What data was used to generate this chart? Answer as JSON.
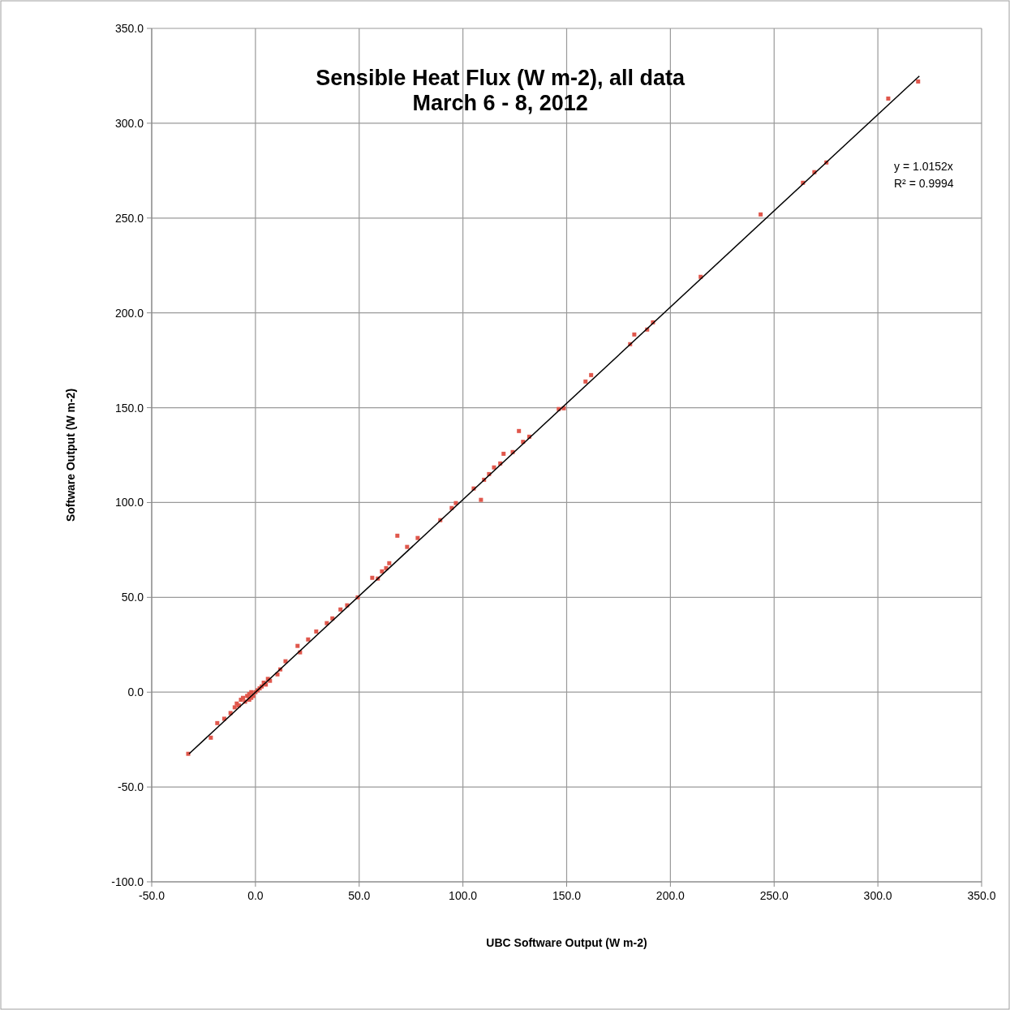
{
  "chart_data": {
    "type": "scatter",
    "title": "Sensible Heat Flux (W m-2),  all data",
    "subtitle": "March 6 - 8, 2012",
    "xlabel": "UBC Software Output (W m-2)",
    "ylabel": "Software Output (W m-2)",
    "xlim": [
      -50,
      350
    ],
    "ylim": [
      -100,
      350
    ],
    "xticks": [
      {
        "value": -50,
        "label": "-50.0"
      },
      {
        "value": 0,
        "label": "0.0"
      },
      {
        "value": 50,
        "label": "50.0"
      },
      {
        "value": 100,
        "label": "100.0"
      },
      {
        "value": 150,
        "label": "150.0"
      },
      {
        "value": 200,
        "label": "200.0"
      },
      {
        "value": 250,
        "label": "250.0"
      },
      {
        "value": 300,
        "label": "300.0"
      },
      {
        "value": 350,
        "label": "350.0"
      }
    ],
    "yticks": [
      {
        "value": -100,
        "label": "-100.0"
      },
      {
        "value": -50,
        "label": "-50.0"
      },
      {
        "value": 0,
        "label": "0.0"
      },
      {
        "value": 50,
        "label": "50.0"
      },
      {
        "value": 100,
        "label": "100.0"
      },
      {
        "value": 150,
        "label": "150.0"
      },
      {
        "value": 200,
        "label": "200.0"
      },
      {
        "value": 250,
        "label": "250.0"
      },
      {
        "value": 300,
        "label": "300.0"
      },
      {
        "value": 350,
        "label": "350.0"
      }
    ],
    "grid": true,
    "marker": "square",
    "annotations": [
      "y = 1.0152x",
      "R² = 0.9994"
    ],
    "series": [
      {
        "color": "#e0574c",
        "x": [
          -32.4,
          -21.5,
          -18.4,
          -15,
          -12,
          -10,
          -9,
          -8,
          -7,
          -6,
          -5,
          -4,
          -3,
          -2,
          -1,
          0,
          1,
          2,
          3,
          4,
          5,
          6,
          7,
          -3,
          -2,
          14.5,
          10.6,
          12,
          20.3,
          21.5,
          25.4,
          29.3,
          34.4,
          37.1,
          41,
          44.2,
          49.3,
          56.3,
          59,
          61,
          63,
          64.5,
          68.4,
          73.1,
          78.2,
          89.1,
          94.6,
          96.6,
          105.2,
          108.7,
          110.2,
          112.6,
          115,
          118,
          119.6,
          124,
          127,
          129,
          132,
          146.2,
          148.6,
          159.1,
          161.8,
          180.6,
          182.6,
          188.8,
          191.6,
          214.6,
          243.5,
          263.9,
          269.4,
          275.2,
          305,
          319.4
        ],
        "values": [
          -32.5,
          -24,
          -16.3,
          -14,
          -11,
          -8,
          -6,
          -7,
          -4,
          -3,
          -5,
          -2,
          -1,
          0,
          -2,
          0,
          1,
          2,
          3,
          5,
          4,
          7,
          6,
          -4,
          -3,
          16.3,
          9.4,
          12,
          24.4,
          21,
          27.8,
          32,
          36.4,
          38.9,
          43.6,
          45.8,
          50,
          60.3,
          59.9,
          63.7,
          65.4,
          68,
          82.5,
          76.6,
          81.3,
          90.7,
          97.1,
          99.7,
          107.4,
          101.4,
          112,
          115,
          118.5,
          120.6,
          125.7,
          126.6,
          137.7,
          132,
          134.7,
          149.3,
          149.7,
          163.8,
          167.2,
          183.5,
          188.6,
          191.2,
          195,
          219,
          251.9,
          268.6,
          274.2,
          279.3,
          313,
          322
        ]
      },
      {
        "type": "line",
        "color": "#000000",
        "marker": "none",
        "line_style": "solid",
        "x": [
          -32,
          320
        ],
        "values": [
          -32.5,
          324.9
        ]
      }
    ]
  }
}
